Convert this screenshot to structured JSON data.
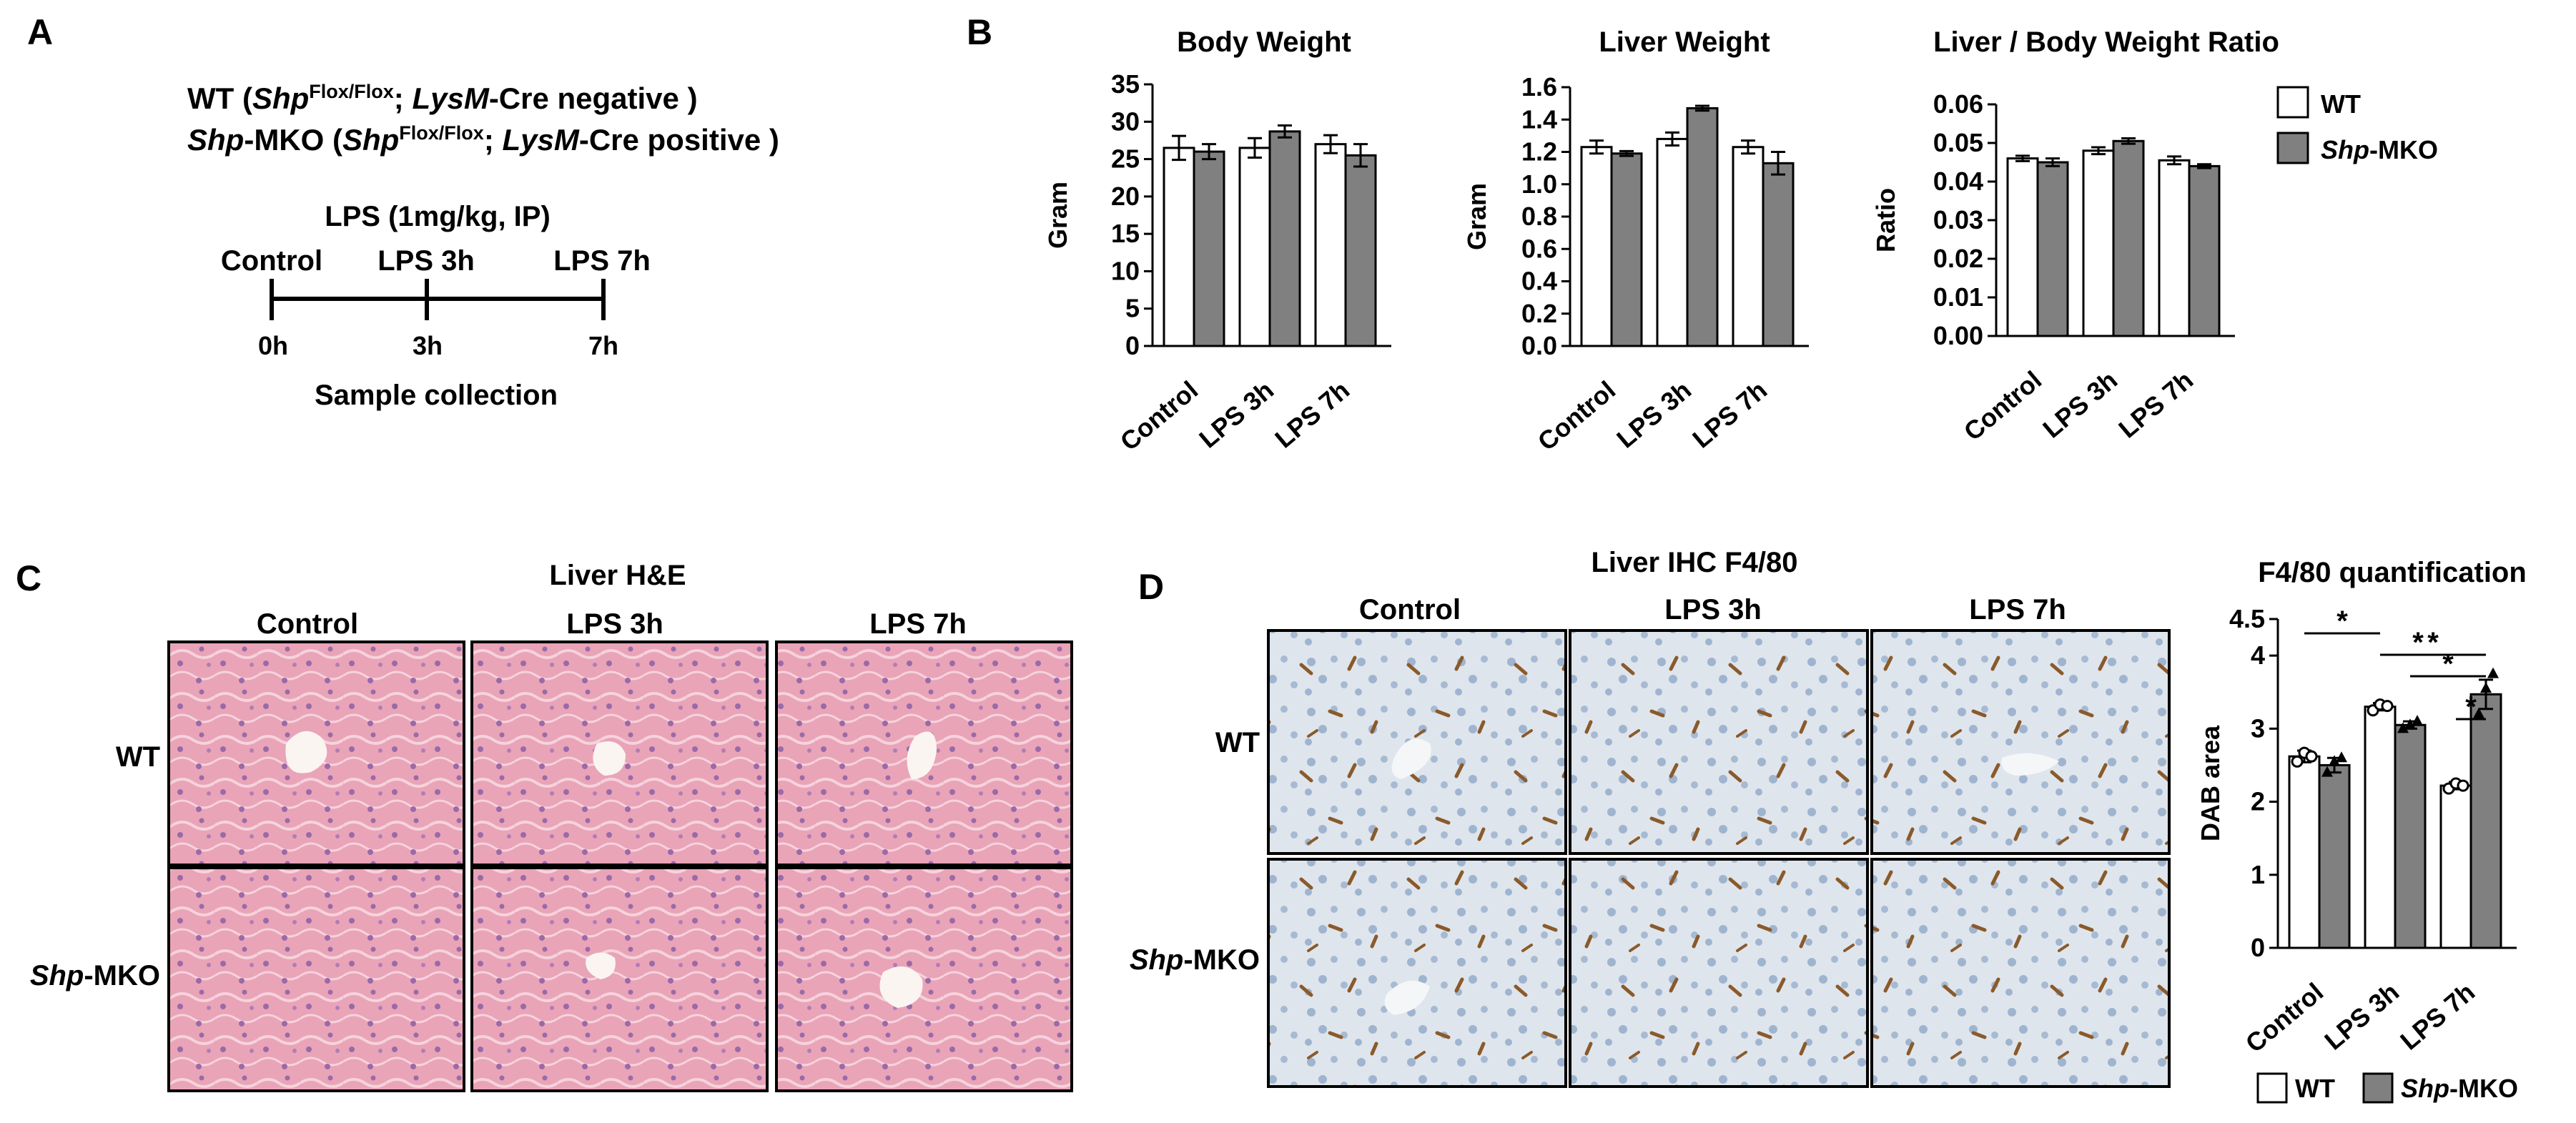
{
  "panels": {
    "a": {
      "letter": "A",
      "wt_line": {
        "name": "WT",
        "open": " (",
        "gene": "Shp",
        "flox": "Flox/Flox",
        "sep": "; ",
        "cre": "LysM",
        "rest": "-Cre negative )"
      },
      "mko_line": {
        "gene": "Shp",
        "name": "-MKO",
        "open": " (",
        "gene2": "Shp",
        "flox": "Flox/Flox",
        "sep": "; ",
        "cre": "LysM",
        "rest": "-Cre positive )"
      },
      "treatment": "LPS (1mg/kg, IP)",
      "timepoints": [
        {
          "label": "Control",
          "time": "0h"
        },
        {
          "label": "LPS 3h",
          "time": "3h"
        },
        {
          "label": "LPS 7h",
          "time": "7h"
        }
      ],
      "caption": "Sample collection"
    },
    "b": {
      "letter": "B"
    },
    "c": {
      "letter": "C",
      "title": "Liver H&E",
      "columns": [
        "Control",
        "LPS 3h",
        "LPS 7h"
      ],
      "rows": [
        {
          "name": "WT",
          "italic": "",
          "rest": "WT"
        },
        {
          "name": "Shp-MKO",
          "italic": "Shp",
          "rest": "-MKO"
        }
      ]
    },
    "d": {
      "letter": "D",
      "title": "Liver IHC F4/80",
      "columns": [
        "Control",
        "LPS 3h",
        "LPS 7h"
      ],
      "rows": [
        {
          "name": "WT",
          "italic": "",
          "rest": "WT"
        },
        {
          "name": "Shp-MKO",
          "italic": "Shp",
          "rest": "-MKO"
        }
      ]
    }
  },
  "legend": {
    "wt": "WT",
    "mko_italic": "Shp",
    "mko_rest": "-MKO"
  },
  "colors": {
    "wt_fill": "#ffffff",
    "mko_fill": "#808080",
    "he_stain": "#e8a3b6",
    "ihc_background": "#dde3ea",
    "dab": "#8a5a2b"
  },
  "chart_data": [
    {
      "type": "bar",
      "title": "Body Weight",
      "ylabel": "Gram",
      "categories": [
        "Control",
        "LPS 3h",
        "LPS 7h"
      ],
      "ylim": [
        0,
        35
      ],
      "yticks": [
        0,
        5,
        10,
        15,
        20,
        25,
        30,
        35
      ],
      "tick_labels": [
        "0",
        "5",
        "10",
        "15",
        "20",
        "25",
        "30",
        "35"
      ],
      "series": [
        {
          "name": "WT",
          "values": [
            26.5,
            26.5,
            27.0
          ],
          "errors": [
            1.6,
            1.3,
            1.2
          ]
        },
        {
          "name": "Shp-MKO",
          "values": [
            26.0,
            28.7,
            25.5
          ],
          "errors": [
            1.0,
            0.8,
            1.5
          ]
        }
      ]
    },
    {
      "type": "bar",
      "title": "Liver Weight",
      "ylabel": "Gram",
      "categories": [
        "Control",
        "LPS 3h",
        "LPS 7h"
      ],
      "ylim": [
        0,
        1.6
      ],
      "yticks": [
        0,
        0.2,
        0.4,
        0.6,
        0.8,
        1.0,
        1.2,
        1.4,
        1.6
      ],
      "tick_labels": [
        "0.0",
        "0.2",
        "0.4",
        "0.6",
        "0.8",
        "1.0",
        "1.2",
        "1.4",
        "1.6"
      ],
      "series": [
        {
          "name": "WT",
          "values": [
            1.23,
            1.28,
            1.23
          ],
          "errors": [
            0.04,
            0.04,
            0.04
          ]
        },
        {
          "name": "Shp-MKO",
          "values": [
            1.19,
            1.47,
            1.13
          ],
          "errors": [
            0.015,
            0.015,
            0.07
          ]
        }
      ]
    },
    {
      "type": "bar",
      "title": "Liver / Body Weight Ratio",
      "ylabel": "Ratio",
      "categories": [
        "Control",
        "LPS 3h",
        "LPS 7h"
      ],
      "ylim": [
        0,
        0.06
      ],
      "yticks": [
        0,
        0.01,
        0.02,
        0.03,
        0.04,
        0.05,
        0.06
      ],
      "tick_labels": [
        "0.00",
        "0.01",
        "0.02",
        "0.03",
        "0.04",
        "0.05",
        "0.06"
      ],
      "series": [
        {
          "name": "WT",
          "values": [
            0.046,
            0.048,
            0.0455
          ],
          "errors": [
            0.0007,
            0.0009,
            0.001
          ]
        },
        {
          "name": "Shp-MKO",
          "values": [
            0.045,
            0.0505,
            0.044
          ],
          "errors": [
            0.001,
            0.0007,
            0.0005
          ]
        }
      ]
    },
    {
      "type": "bar",
      "title": "F4/80 quantification",
      "ylabel": "DAB area",
      "categories": [
        "Control",
        "LPS 3h",
        "LPS 7h"
      ],
      "ylim": [
        0,
        4.5
      ],
      "yticks": [
        0,
        1,
        2,
        3,
        4,
        4.5
      ],
      "tick_labels": [
        "0",
        "1",
        "2",
        "3",
        "4",
        "4.5"
      ],
      "series": [
        {
          "name": "WT",
          "values": [
            2.62,
            3.3,
            2.22
          ],
          "errors": [
            0.08,
            0.05,
            0.05
          ],
          "points": [
            [
              2.55,
              2.67,
              2.62
            ],
            [
              3.25,
              3.33,
              3.31
            ],
            [
              2.18,
              2.25,
              2.22
            ]
          ]
        },
        {
          "name": "Shp-MKO",
          "values": [
            2.5,
            3.05,
            3.47
          ],
          "errors": [
            0.1,
            0.05,
            0.2
          ],
          "points": [
            [
              2.4,
              2.55,
              2.6
            ],
            [
              3.0,
              3.05,
              3.1
            ],
            [
              3.2,
              3.55,
              3.75
            ]
          ]
        }
      ],
      "significance": [
        {
          "between": [
            "WT Control",
            "WT LPS 3h"
          ],
          "label": "*"
        },
        {
          "between": [
            "WT LPS 3h",
            "WT LPS 7h"
          ],
          "label": "*"
        },
        {
          "between": [
            "Shp-MKO LPS 3h",
            "Shp-MKO LPS 7h"
          ],
          "label": "*"
        },
        {
          "between": [
            "WT LPS 3h",
            "Shp-MKO LPS 7h"
          ],
          "label": "*"
        },
        {
          "between": [
            "WT LPS 7h",
            "Shp-MKO LPS 7h"
          ],
          "label": "*"
        }
      ]
    }
  ]
}
